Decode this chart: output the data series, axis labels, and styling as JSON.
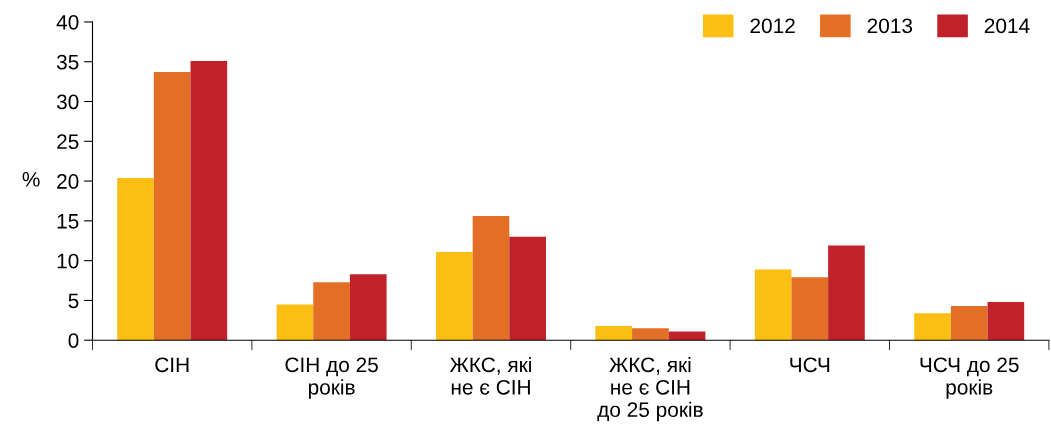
{
  "chart_data": {
    "type": "bar",
    "ylabel": "%",
    "categories": [
      "СІН",
      "СІН до 25\nроків",
      "ЖКС, які\nне є СІН",
      "ЖКС, які\nне є СІН\nдо 25 років",
      "ЧСЧ",
      "ЧСЧ до 25\nроків"
    ],
    "series": [
      {
        "name": "2012",
        "color": "#fbbf14",
        "values": [
          20.4,
          4.5,
          11.1,
          1.8,
          8.9,
          3.4
        ]
      },
      {
        "name": "2013",
        "color": "#e36f26",
        "values": [
          33.7,
          7.3,
          15.6,
          1.5,
          7.9,
          4.3
        ]
      },
      {
        "name": "2014",
        "color": "#c0212a",
        "values": [
          35.1,
          8.3,
          13.0,
          1.1,
          11.9,
          4.8
        ]
      }
    ],
    "ylim": [
      0,
      40
    ],
    "yticks": [
      0,
      5,
      10,
      15,
      20,
      25,
      30,
      35,
      40
    ],
    "grid": false,
    "legend": "top right"
  }
}
